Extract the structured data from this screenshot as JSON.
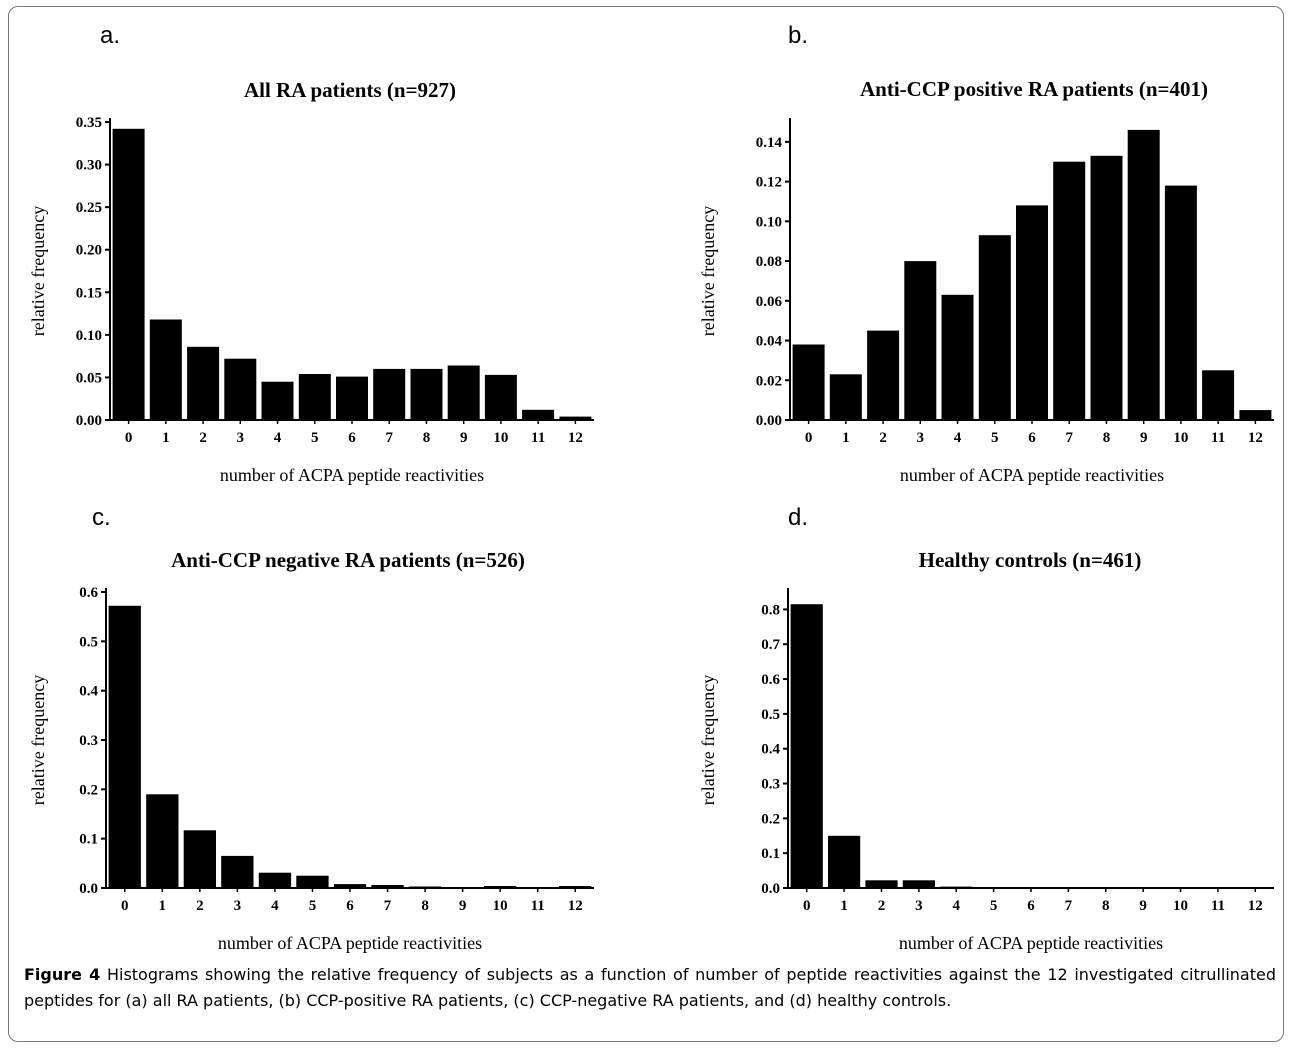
{
  "figure": {
    "caption_label": "Figure 4",
    "caption_text": "Histograms showing the relative frequency of subjects as a function of number of peptide reactivities against the 12 investigated citrullinated peptides for (a) all RA patients, (b) CCP-positive RA patients, (c) CCP-negative RA patients, and (d) healthy controls."
  },
  "panels": [
    {
      "letter": "a."
    },
    {
      "letter": "b."
    },
    {
      "letter": "c."
    },
    {
      "letter": "d."
    }
  ],
  "colors": {
    "bar": "#000000",
    "axis": "#000000"
  },
  "chart_data": [
    {
      "type": "bar",
      "title": "All RA patients (n=927)",
      "xlabel": "number of ACPA peptide reactivities",
      "ylabel": "relative frequency",
      "categories": [
        "0",
        "1",
        "2",
        "3",
        "4",
        "5",
        "6",
        "7",
        "8",
        "9",
        "10",
        "11",
        "12"
      ],
      "values": [
        0.342,
        0.118,
        0.086,
        0.072,
        0.045,
        0.054,
        0.051,
        0.06,
        0.06,
        0.064,
        0.053,
        0.012,
        0.004
      ],
      "ylim": [
        0,
        0.35
      ],
      "yticks": [
        "0.00",
        "0.05",
        "0.10",
        "0.15",
        "0.20",
        "0.25",
        "0.30",
        "0.35"
      ],
      "ytick_values": [
        0,
        0.05,
        0.1,
        0.15,
        0.2,
        0.25,
        0.3,
        0.35
      ]
    },
    {
      "type": "bar",
      "title": "Anti-CCP positive RA patients (n=401)",
      "xlabel": "number of ACPA peptide reactivities",
      "ylabel": "relative frequency",
      "categories": [
        "0",
        "1",
        "2",
        "3",
        "4",
        "5",
        "6",
        "7",
        "8",
        "9",
        "10",
        "11",
        "12"
      ],
      "values": [
        0.038,
        0.023,
        0.045,
        0.08,
        0.063,
        0.093,
        0.108,
        0.13,
        0.133,
        0.146,
        0.118,
        0.025,
        0.005
      ],
      "ylim": [
        0,
        0.15
      ],
      "yticks": [
        "0.00",
        "0.02",
        "0.04",
        "0.06",
        "0.08",
        "0.10",
        "0.12",
        "0.14"
      ],
      "ytick_values": [
        0,
        0.02,
        0.04,
        0.06,
        0.08,
        0.1,
        0.12,
        0.14
      ]
    },
    {
      "type": "bar",
      "title": "Anti-CCP negative RA patients (n=526)",
      "xlabel": "number of ACPA peptide reactivities",
      "ylabel": "relative frequency",
      "categories": [
        "0",
        "1",
        "2",
        "3",
        "4",
        "5",
        "6",
        "7",
        "8",
        "9",
        "10",
        "11",
        "12"
      ],
      "values": [
        0.572,
        0.19,
        0.117,
        0.065,
        0.031,
        0.025,
        0.008,
        0.006,
        0.003,
        0.002,
        0.004,
        0.002,
        0.004
      ],
      "ylim": [
        0,
        0.6
      ],
      "yticks": [
        "0.0",
        "0.1",
        "0.2",
        "0.3",
        "0.4",
        "0.5",
        "0.6"
      ],
      "ytick_values": [
        0,
        0.1,
        0.2,
        0.3,
        0.4,
        0.5,
        0.6
      ]
    },
    {
      "type": "bar",
      "title": "Healthy controls (n=461)",
      "xlabel": "number of ACPA peptide reactivities",
      "ylabel": "relative frequency",
      "categories": [
        "0",
        "1",
        "2",
        "3",
        "4",
        "5",
        "6",
        "7",
        "8",
        "9",
        "10",
        "11",
        "12"
      ],
      "values": [
        0.815,
        0.15,
        0.022,
        0.022,
        0.004,
        0.002,
        0.002,
        0.002,
        0.002,
        0.002,
        0.002,
        0.002,
        0.002
      ],
      "ylim": [
        0,
        0.85
      ],
      "yticks": [
        "0.0",
        "0.1",
        "0.2",
        "0.3",
        "0.4",
        "0.5",
        "0.6",
        "0.7",
        "0.8"
      ],
      "ytick_values": [
        0,
        0.1,
        0.2,
        0.3,
        0.4,
        0.5,
        0.6,
        0.7,
        0.8
      ]
    }
  ]
}
